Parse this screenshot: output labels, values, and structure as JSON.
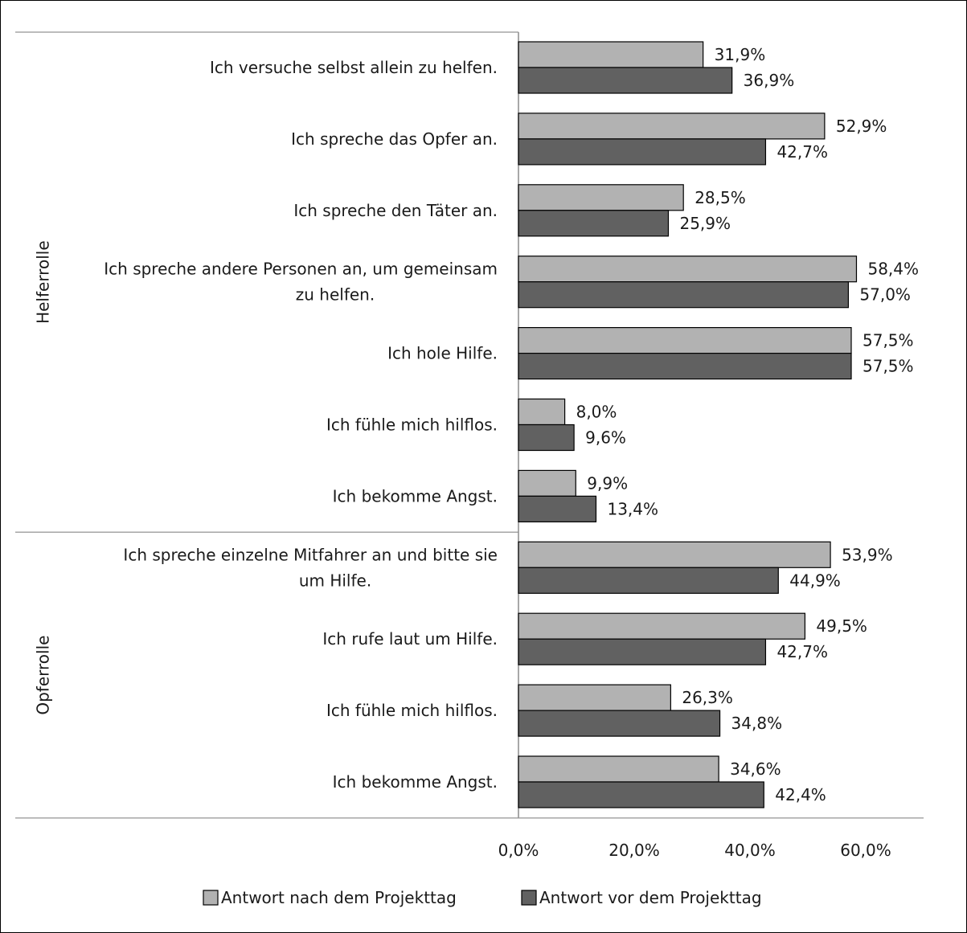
{
  "chart_data": {
    "type": "bar",
    "orientation": "horizontal",
    "groups": [
      {
        "label": "Helferrolle",
        "category_indices": [
          0,
          1,
          2,
          3,
          4,
          5,
          6
        ]
      },
      {
        "label": "Opferrolle",
        "category_indices": [
          7,
          8,
          9,
          10
        ]
      }
    ],
    "categories": [
      [
        "Ich versuche selbst allein zu helfen."
      ],
      [
        "Ich spreche das Opfer an."
      ],
      [
        "Ich spreche den Täter an."
      ],
      [
        "Ich spreche andere Personen an, um gemeinsam",
        "zu helfen."
      ],
      [
        "Ich hole Hilfe."
      ],
      [
        "Ich fühle mich hilflos."
      ],
      [
        "Ich bekomme Angst."
      ],
      [
        "Ich spreche einzelne Mitfahrer an und bitte sie",
        "um Hilfe."
      ],
      [
        "Ich rufe laut um Hilfe."
      ],
      [
        "Ich fühle mich hilflos."
      ],
      [
        "Ich bekomme Angst."
      ]
    ],
    "series": [
      {
        "name": "Antwort nach dem Projekttag",
        "color": "#b2b2b2",
        "values": [
          31.9,
          52.9,
          28.5,
          58.4,
          57.5,
          8.0,
          9.9,
          53.9,
          49.5,
          26.3,
          34.6
        ],
        "labels": [
          "31,9%",
          "52,9%",
          "28,5%",
          "58,4%",
          "57,5%",
          "8,0%",
          "9,9%",
          "53,9%",
          "49,5%",
          "26,3%",
          "34,6%"
        ]
      },
      {
        "name": "Antwort vor dem Projekttag",
        "color": "#616161",
        "values": [
          36.9,
          42.7,
          25.9,
          57.0,
          57.5,
          9.6,
          13.4,
          44.9,
          42.7,
          34.8,
          42.4
        ],
        "labels": [
          "36,9%",
          "42,7%",
          "25,9%",
          "57,0%",
          "57,5%",
          "9,6%",
          "13,4%",
          "44,9%",
          "42,7%",
          "34,8%",
          "42,4%"
        ]
      }
    ],
    "xlim": [
      0,
      70
    ],
    "xticks": [
      0,
      20,
      40,
      60
    ],
    "xtick_labels": [
      "0,0%",
      "20,0%",
      "40,0%",
      "60,0%"
    ],
    "legend_position": "bottom",
    "grid": false
  }
}
